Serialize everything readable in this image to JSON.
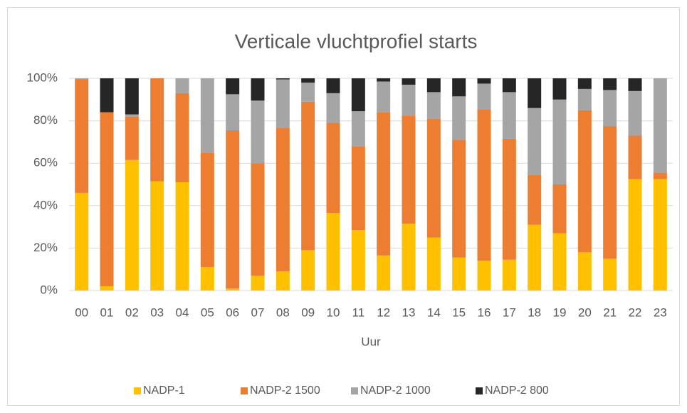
{
  "chart_data": {
    "type": "stacked_bar",
    "title": "Verticale vluchtprofiel starts",
    "x_label": "Uur",
    "categories": [
      "00",
      "01",
      "02",
      "03",
      "04",
      "05",
      "06",
      "07",
      "08",
      "09",
      "10",
      "11",
      "12",
      "13",
      "14",
      "15",
      "16",
      "17",
      "18",
      "19",
      "20",
      "21",
      "22",
      "23"
    ],
    "series": [
      {
        "name": "NADP-1",
        "color": "#ffc000",
        "values": [
          46,
          2,
          61.5,
          51.5,
          51,
          11,
          1,
          7,
          9,
          19,
          36.5,
          28.5,
          16.5,
          31.5,
          25,
          15.5,
          14,
          14.5,
          31,
          27,
          18,
          15,
          52.5,
          52.5
        ]
      },
      {
        "name": "NADP-2 1500",
        "color": "#ed7d31",
        "values": [
          53.5,
          82,
          20.5,
          48.5,
          42,
          54,
          74.5,
          53,
          67.5,
          70,
          42.5,
          39.5,
          67.5,
          51,
          56,
          55.5,
          71.5,
          57,
          23.5,
          23,
          67,
          62.5,
          20.5,
          3
        ]
      },
      {
        "name": "NADP-2 1000",
        "color": "#a5a5a5",
        "values": [
          0.5,
          0,
          1,
          0,
          7,
          35,
          17,
          29.5,
          23,
          9,
          14,
          16.5,
          14.5,
          14.5,
          12.5,
          20.5,
          12,
          22,
          31.5,
          40,
          10,
          17,
          21,
          44.5
        ]
      },
      {
        "name": "NADP-2 800",
        "color": "#262626",
        "values": [
          0,
          16,
          17,
          0,
          0,
          0,
          7.5,
          10.5,
          0.5,
          2,
          7,
          15.5,
          1.5,
          3,
          6.5,
          8.5,
          2.5,
          6.5,
          14,
          10,
          5,
          5.5,
          6,
          0
        ]
      }
    ],
    "ylim": [
      0,
      100
    ],
    "yticks": [
      {
        "value": 0,
        "label": "0%"
      },
      {
        "value": 20,
        "label": "20%"
      },
      {
        "value": 40,
        "label": "40%"
      },
      {
        "value": 60,
        "label": "60%"
      },
      {
        "value": 80,
        "label": "80%"
      },
      {
        "value": 100,
        "label": "100%"
      }
    ],
    "grid": true,
    "legend": "bottom"
  }
}
